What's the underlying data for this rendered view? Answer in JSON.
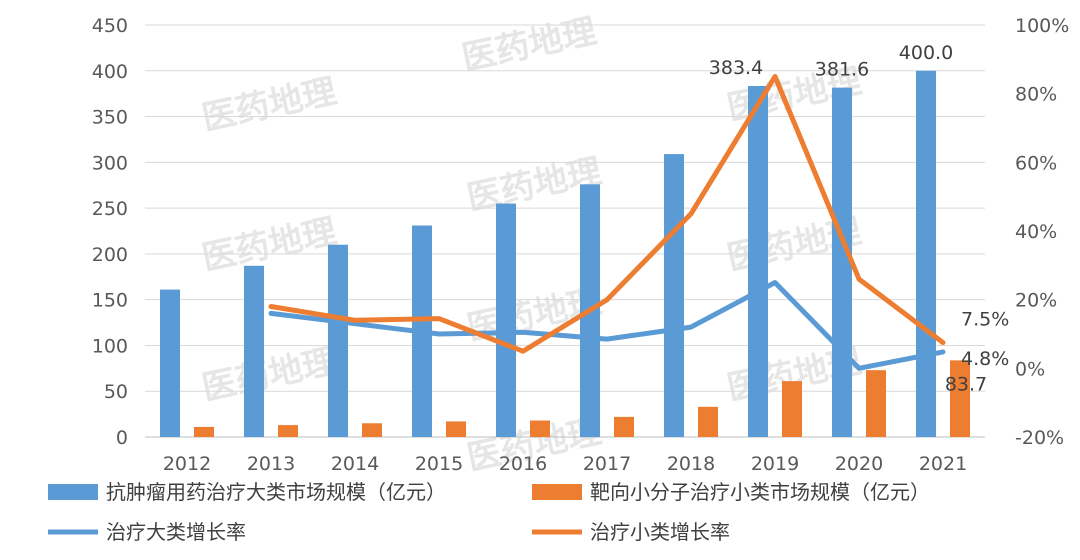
{
  "watermark_text": "医药地理",
  "chart_data": {
    "type": "bar",
    "categories": [
      "2012",
      "2013",
      "2014",
      "2015",
      "2016",
      "2017",
      "2018",
      "2019",
      "2020",
      "2021"
    ],
    "bar_series": [
      {
        "name": "抗肿瘤用药治疗大类市场规模（亿元）",
        "color": "#5b9bd5",
        "axis": "left",
        "values": [
          161,
          187,
          210,
          231,
          255,
          276,
          309,
          383.4,
          381.6,
          400.0
        ]
      },
      {
        "name": "靶向小分子治疗小类市场规模（亿元）",
        "color": "#ed7d31",
        "axis": "left",
        "values": [
          11,
          13,
          15,
          17,
          18,
          22,
          33,
          61,
          73,
          83.7
        ]
      }
    ],
    "line_series": [
      {
        "name": "治疗大类增长率",
        "color": "#5b9bd5",
        "axis": "right",
        "start_index": 1,
        "values": [
          16,
          13,
          10,
          10.5,
          8.5,
          12,
          25,
          0,
          4.8
        ]
      },
      {
        "name": "治疗小类增长率",
        "color": "#ed7d31",
        "axis": "right",
        "start_index": 1,
        "values": [
          18,
          14,
          14.5,
          5,
          20,
          45,
          85,
          26,
          7.5
        ]
      }
    ],
    "data_labels": [
      {
        "series": 0,
        "index": 7,
        "text": "383.4"
      },
      {
        "series": 0,
        "index": 8,
        "text": "381.6"
      },
      {
        "series": 0,
        "index": 9,
        "text": "400.0"
      },
      {
        "series": 1,
        "index": 9,
        "text": "83.7"
      },
      {
        "series": 2,
        "index": 9,
        "text": "4.8%"
      },
      {
        "series": 3,
        "index": 9,
        "text": "7.5%"
      }
    ],
    "y_left": {
      "min": 0,
      "max": 450,
      "ticks": [
        0,
        50,
        100,
        150,
        200,
        250,
        300,
        350,
        400,
        450
      ],
      "tick_labels": [
        "0",
        "50",
        "100",
        "150",
        "200",
        "250",
        "300",
        "350",
        "400",
        "450"
      ]
    },
    "y_right": {
      "min": -20,
      "max": 100,
      "ticks": [
        -20,
        0,
        20,
        40,
        60,
        80,
        100
      ],
      "tick_labels": [
        "-20%",
        "0%",
        "20%",
        "40%",
        "60%",
        "80%",
        "100%"
      ]
    },
    "grid": true,
    "legend_position": "bottom"
  }
}
